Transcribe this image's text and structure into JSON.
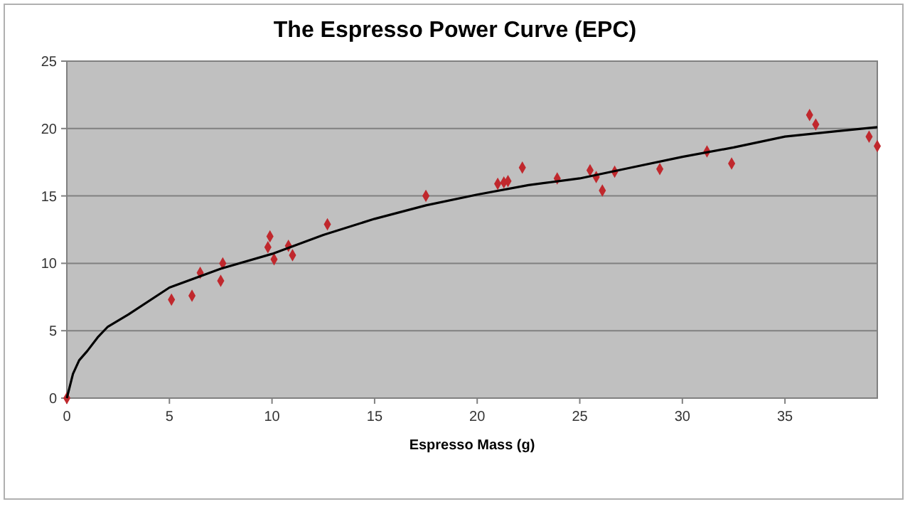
{
  "chart_data": {
    "type": "scatter",
    "title": "The Espresso Power Curve (EPC)",
    "xlabel": "Espresso Mass (g)",
    "xlim": [
      0,
      39.5
    ],
    "xticks": [
      0,
      5,
      10,
      15,
      20,
      25,
      30,
      35
    ],
    "ylim": [
      0,
      25
    ],
    "yticks": [
      0,
      5,
      10,
      15,
      20,
      25
    ],
    "grid": "y",
    "series": [
      {
        "color": "#c0282d",
        "marker": "diamond",
        "x": [
          0,
          5.1,
          6.1,
          6.5,
          7.5,
          7.6,
          9.8,
          9.9,
          10.1,
          10.8,
          11,
          12.7,
          17.5,
          21,
          21.3,
          21.5,
          22.2,
          23.9,
          25.5,
          25.8,
          26.1,
          26.7,
          28.9,
          31.2,
          32.4,
          36.2,
          36.5,
          39.1,
          39.5
        ],
        "values": [
          0,
          7.3,
          7.6,
          9.3,
          8.7,
          10,
          11.2,
          12,
          10.3,
          11.3,
          10.6,
          12.9,
          15,
          15.9,
          16,
          16.1,
          17.1,
          16.3,
          16.9,
          16.4,
          15.4,
          16.8,
          17,
          18.3,
          17.4,
          21,
          20.3,
          19.4,
          18.7
        ]
      },
      {
        "type": "line",
        "color": "#000000",
        "marker": "none",
        "x": [
          0,
          0.3,
          0.6,
          1,
          1.5,
          2,
          3,
          5,
          7.5,
          10,
          12.5,
          15,
          17.5,
          20,
          22.5,
          25,
          27.5,
          30,
          32.5,
          35,
          37.5,
          39.5
        ],
        "values": [
          0,
          1.8,
          2.8,
          3.5,
          4.5,
          5.3,
          6.2,
          8.2,
          9.6,
          10.7,
          12.1,
          13.3,
          14.3,
          15.1,
          15.8,
          16.3,
          17.1,
          17.9,
          18.6,
          19.4,
          19.8,
          20.1
        ]
      }
    ]
  }
}
